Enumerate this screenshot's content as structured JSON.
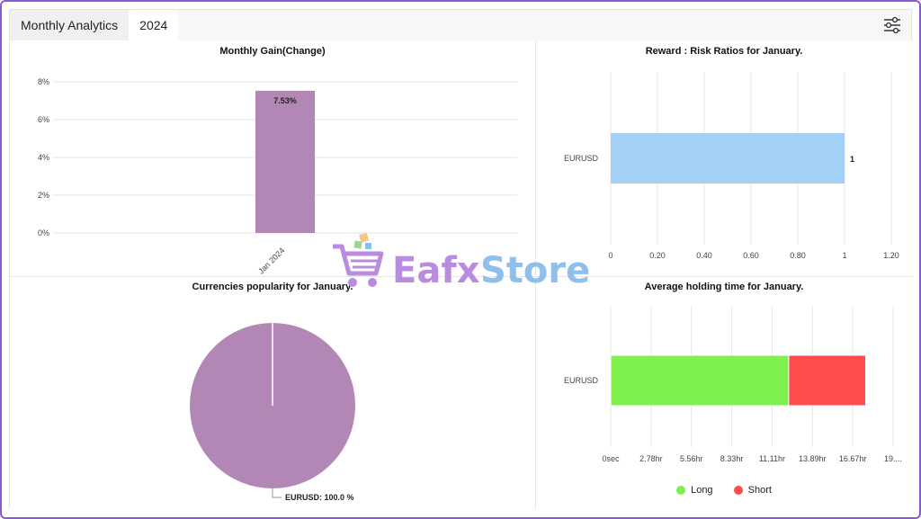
{
  "header": {
    "tab_label": "Monthly Analytics",
    "year_label": "2024",
    "settings_icon": "sliders-icon"
  },
  "watermark": {
    "part1": "Eafx",
    "part2": "Store",
    "icon": "shopping-cart-icon"
  },
  "colors": {
    "gain_bar": "#b387b5",
    "reward_bar": "#a5d0f6",
    "pie": "#b387b5",
    "long": "#7ef14e",
    "short": "#fe4b4b",
    "grid": "#e5e5e5",
    "axis_text": "#444444"
  },
  "chart_data": [
    {
      "id": "monthly_gain",
      "type": "bar",
      "title": "Monthly Gain(Change)",
      "categories": [
        "Jan 2024"
      ],
      "values": [
        7.53
      ],
      "data_labels": [
        "7.53%"
      ],
      "ylim": [
        0,
        8
      ],
      "yticks": [
        "0%",
        "2%",
        "4%",
        "6%",
        "8%"
      ],
      "grid": true
    },
    {
      "id": "reward_risk",
      "type": "bar",
      "orientation": "horizontal",
      "title": "Reward : Risk Ratios for January.",
      "categories": [
        "EURUSD"
      ],
      "values": [
        1
      ],
      "data_labels": [
        "1"
      ],
      "xlim": [
        0,
        1.2
      ],
      "xticks": [
        "0",
        "0.20",
        "0.40",
        "0.60",
        "0.80",
        "1",
        "1.20"
      ],
      "grid": true
    },
    {
      "id": "currency_popularity",
      "type": "pie",
      "title": "Currencies popularity for January.",
      "slices": [
        {
          "label": "EURUSD",
          "value": 100.0
        }
      ],
      "data_labels": [
        "EURUSD: 100.0 %"
      ]
    },
    {
      "id": "avg_holding",
      "type": "bar",
      "orientation": "horizontal",
      "stacked": true,
      "title": "Average holding time for January.",
      "categories": [
        "EURUSD"
      ],
      "series": [
        {
          "name": "Long",
          "values": [
            12.25
          ]
        },
        {
          "name": "Short",
          "values": [
            5.3
          ]
        }
      ],
      "xlim": [
        0,
        19.44
      ],
      "xticks": [
        "0sec",
        "2.78hr",
        "5.56hr",
        "8.33hr",
        "11.11hr",
        "13.89hr",
        "16.67hr",
        "19...."
      ],
      "legend": "bottom",
      "grid": true
    }
  ]
}
